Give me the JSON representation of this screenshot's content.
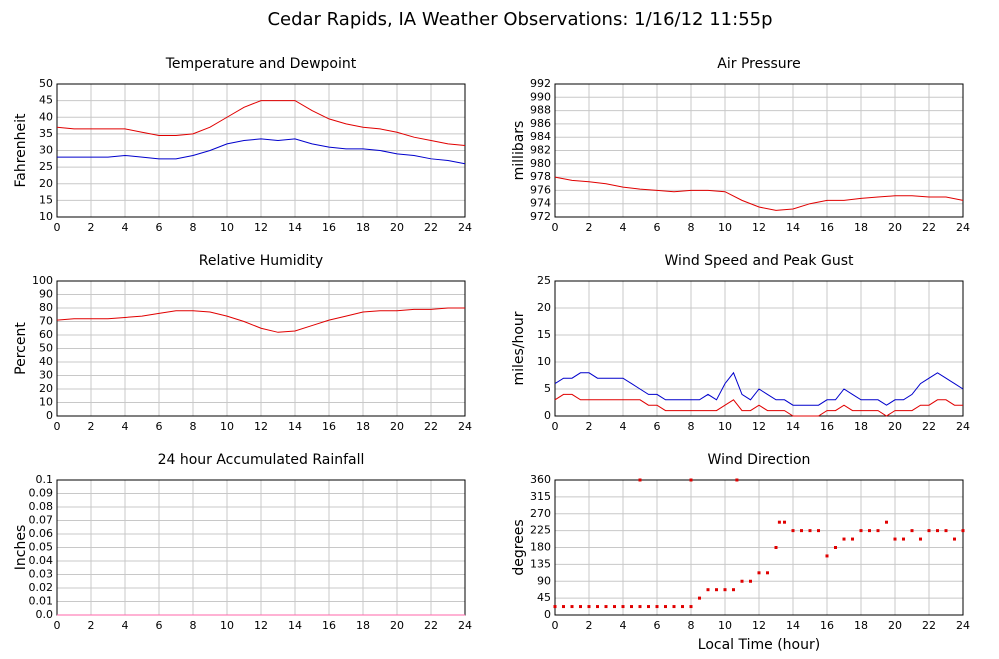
{
  "title": "Cedar Rapids, IA Weather Observations: 1/16/12 11:55p",
  "chart_data": [
    {
      "type": "line",
      "title": "Temperature and Dewpoint",
      "ylabel": "Fahrenheit",
      "x": [
        0,
        1,
        2,
        3,
        4,
        5,
        6,
        7,
        8,
        9,
        10,
        11,
        12,
        13,
        14,
        15,
        16,
        17,
        18,
        19,
        20,
        21,
        22,
        23,
        24
      ],
      "series": [
        {
          "color": "#e00000",
          "values": [
            37,
            36.5,
            36.5,
            36.5,
            36.5,
            35.5,
            34.5,
            34.5,
            35,
            37,
            40,
            43,
            45,
            45,
            45,
            42,
            39.5,
            38,
            37,
            36.5,
            35.5,
            34,
            33,
            32,
            31.5
          ]
        },
        {
          "color": "#0000cc",
          "values": [
            28,
            28,
            28,
            28,
            28.5,
            28,
            27.5,
            27.5,
            28.5,
            30,
            32,
            33,
            33.5,
            33,
            33.5,
            32,
            31,
            30.5,
            30.5,
            30,
            29,
            28.5,
            27.5,
            27,
            26
          ]
        }
      ],
      "xlim": [
        0,
        24
      ],
      "xticks": [
        0,
        2,
        4,
        6,
        8,
        10,
        12,
        14,
        16,
        18,
        20,
        22,
        24
      ],
      "ylim": [
        10,
        50
      ],
      "yticks": [
        10,
        15,
        20,
        25,
        30,
        35,
        40,
        45,
        50
      ],
      "grid": true
    },
    {
      "type": "line",
      "title": "Air Pressure",
      "ylabel": "millibars",
      "x": [
        0,
        1,
        2,
        3,
        4,
        5,
        6,
        7,
        8,
        9,
        10,
        11,
        12,
        13,
        14,
        15,
        16,
        17,
        18,
        19,
        20,
        21,
        22,
        23,
        24
      ],
      "series": [
        {
          "color": "#e00000",
          "values": [
            978,
            977.5,
            977.3,
            977,
            976.5,
            976.2,
            976,
            975.8,
            976,
            976,
            975.8,
            974.5,
            973.5,
            973,
            973.2,
            974,
            974.5,
            974.5,
            974.8,
            975,
            975.2,
            975.2,
            975,
            975,
            974.5
          ]
        }
      ],
      "xlim": [
        0,
        24
      ],
      "xticks": [
        0,
        2,
        4,
        6,
        8,
        10,
        12,
        14,
        16,
        18,
        20,
        22,
        24
      ],
      "ylim": [
        972,
        992
      ],
      "yticks": [
        972,
        974,
        976,
        978,
        980,
        982,
        984,
        986,
        988,
        990,
        992
      ],
      "grid": true
    },
    {
      "type": "line",
      "title": "Relative Humidity",
      "ylabel": "Percent",
      "x": [
        0,
        1,
        2,
        3,
        4,
        5,
        6,
        7,
        8,
        9,
        10,
        11,
        12,
        13,
        14,
        15,
        16,
        17,
        18,
        19,
        20,
        21,
        22,
        23,
        24
      ],
      "series": [
        {
          "color": "#e00000",
          "values": [
            71,
            72,
            72,
            72,
            73,
            74,
            76,
            78,
            78,
            77,
            74,
            70,
            65,
            62,
            63,
            67,
            71,
            74,
            77,
            78,
            78,
            79,
            79,
            80,
            80
          ]
        }
      ],
      "xlim": [
        0,
        24
      ],
      "xticks": [
        0,
        2,
        4,
        6,
        8,
        10,
        12,
        14,
        16,
        18,
        20,
        22,
        24
      ],
      "ylim": [
        0,
        100
      ],
      "yticks": [
        0,
        10,
        20,
        30,
        40,
        50,
        60,
        70,
        80,
        90,
        100
      ],
      "grid": true
    },
    {
      "type": "line",
      "title": "Wind Speed and Peak Gust",
      "ylabel": "miles/hour",
      "x": [
        0,
        0.5,
        1,
        1.5,
        2,
        2.5,
        3,
        3.5,
        4,
        4.5,
        5,
        5.5,
        6,
        6.5,
        7,
        7.5,
        8,
        8.5,
        9,
        9.5,
        10,
        10.5,
        11,
        11.5,
        12,
        12.5,
        13,
        13.5,
        14,
        14.5,
        15,
        15.5,
        16,
        16.5,
        17,
        17.5,
        18,
        18.5,
        19,
        19.5,
        20,
        20.5,
        21,
        21.5,
        22,
        22.5,
        23,
        23.5,
        24
      ],
      "series": [
        {
          "color": "#0000cc",
          "values": [
            6,
            7,
            7,
            8,
            8,
            7,
            7,
            7,
            7,
            6,
            5,
            4,
            4,
            3,
            3,
            3,
            3,
            3,
            4,
            3,
            6,
            8,
            4,
            3,
            5,
            4,
            3,
            3,
            2,
            2,
            2,
            2,
            3,
            3,
            5,
            4,
            3,
            3,
            3,
            2,
            3,
            3,
            4,
            6,
            7,
            8,
            7,
            6,
            5
          ]
        },
        {
          "color": "#e00000",
          "values": [
            3,
            4,
            4,
            3,
            3,
            3,
            3,
            3,
            3,
            3,
            3,
            2,
            2,
            1,
            1,
            1,
            1,
            1,
            1,
            1,
            2,
            3,
            1,
            1,
            2,
            1,
            1,
            1,
            0,
            0,
            0,
            0,
            1,
            1,
            2,
            1,
            1,
            1,
            1,
            0,
            1,
            1,
            1,
            2,
            2,
            3,
            3,
            2,
            2
          ]
        }
      ],
      "xlim": [
        0,
        24
      ],
      "xticks": [
        0,
        2,
        4,
        6,
        8,
        10,
        12,
        14,
        16,
        18,
        20,
        22,
        24
      ],
      "ylim": [
        0,
        25
      ],
      "yticks": [
        0,
        5,
        10,
        15,
        20,
        25
      ],
      "grid": true
    },
    {
      "type": "line",
      "title": "24 hour Accumulated Rainfall",
      "ylabel": "Inches",
      "x": [
        0,
        2,
        4,
        6,
        8,
        10,
        12,
        14,
        16,
        18,
        20,
        22,
        24
      ],
      "series": [
        {
          "color": "#ff66aa",
          "values": [
            0,
            0,
            0,
            0,
            0,
            0,
            0,
            0,
            0,
            0,
            0,
            0,
            0
          ]
        }
      ],
      "xlim": [
        0,
        24
      ],
      "xticks": [
        0,
        2,
        4,
        6,
        8,
        10,
        12,
        14,
        16,
        18,
        20,
        22,
        24
      ],
      "ylim": [
        0,
        0.1
      ],
      "yticks": [
        {
          "value": 0,
          "label": "0.0"
        },
        0.01,
        0.02,
        0.03,
        0.04,
        0.05,
        0.06,
        0.07,
        0.08,
        0.09,
        0.1
      ],
      "grid": true
    },
    {
      "type": "scatter",
      "title": "Wind Direction",
      "ylabel": "degrees",
      "xlabel": "Local Time (hour)",
      "x": [
        0,
        0.5,
        1,
        1.5,
        2,
        2.5,
        3,
        3.5,
        4,
        4.5,
        5,
        5,
        5.5,
        6,
        6.5,
        7,
        7.5,
        8,
        8,
        8.5,
        9,
        9.5,
        10,
        10.5,
        10.7,
        11,
        11.5,
        12,
        12.5,
        13,
        13.2,
        13.5,
        14,
        14.5,
        15,
        15.5,
        16,
        16.5,
        17,
        17.5,
        18,
        18.5,
        19,
        19.5,
        20,
        20.5,
        21,
        21.5,
        22,
        22.5,
        23,
        23.5,
        24
      ],
      "series": [
        {
          "color": "#e00000",
          "values": [
            22.5,
            22.5,
            22.5,
            22.5,
            22.5,
            22.5,
            22.5,
            22.5,
            22.5,
            22.5,
            22.5,
            360,
            22.5,
            22.5,
            22.5,
            22.5,
            22.5,
            22.5,
            360,
            45,
            67.5,
            67.5,
            67.5,
            67.5,
            360,
            90,
            90,
            112.5,
            112.5,
            180,
            247.5,
            247.5,
            225,
            225,
            225,
            225,
            157.5,
            180,
            202.5,
            202.5,
            225,
            225,
            225,
            247.5,
            202.5,
            202.5,
            225,
            202.5,
            225,
            225,
            225,
            202.5,
            225
          ]
        }
      ],
      "xlim": [
        0,
        24
      ],
      "xticks": [
        0,
        2,
        4,
        6,
        8,
        10,
        12,
        14,
        16,
        18,
        20,
        22,
        24
      ],
      "ylim": [
        0,
        360
      ],
      "yticks": [
        0,
        45,
        90,
        135,
        180,
        225,
        270,
        315,
        360
      ],
      "grid": true
    }
  ]
}
